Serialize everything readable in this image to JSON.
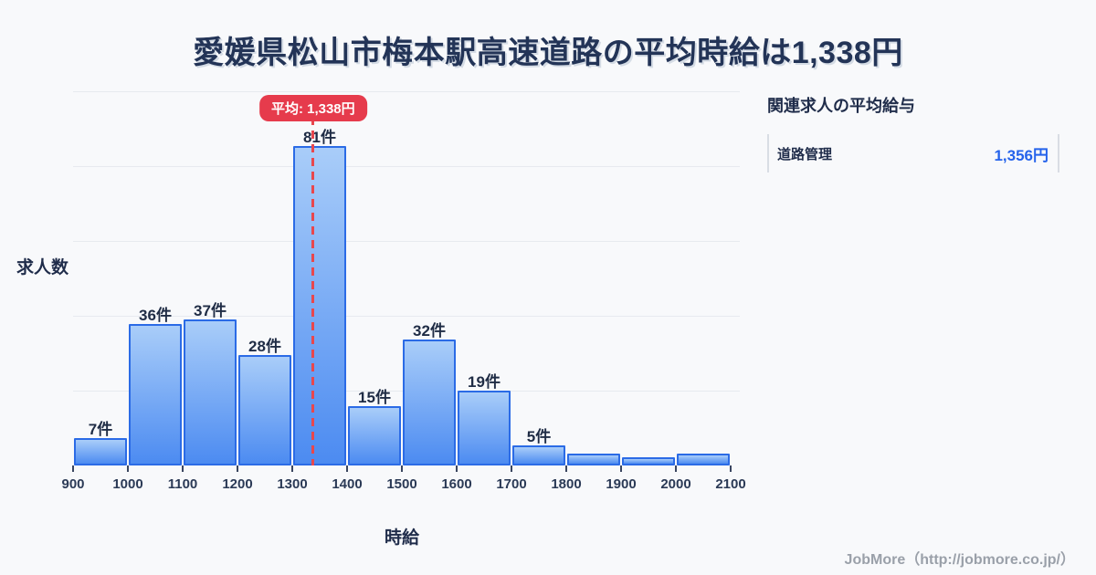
{
  "page": {
    "title": "愛媛県松山市梅本駅高速道路の平均時給は1,338円",
    "background": "#f8f9fb"
  },
  "chart_data": {
    "type": "bar",
    "title": "愛媛県松山市梅本駅高速道路の平均時給は1,338円",
    "xlabel": "時給",
    "ylabel": "求人数",
    "bin_edges": [
      900,
      1000,
      1100,
      1200,
      1300,
      1400,
      1500,
      1600,
      1700,
      1800,
      1900,
      2000,
      2100
    ],
    "x_tick_labels": [
      "900",
      "1000",
      "1100",
      "1200",
      "1300",
      "1400",
      "1500",
      "1600",
      "1700",
      "1800",
      "1900",
      "2000",
      "2100"
    ],
    "values": [
      7,
      36,
      37,
      28,
      81,
      15,
      32,
      19,
      5,
      3,
      2,
      3
    ],
    "bar_labels": [
      "7件",
      "36件",
      "37件",
      "28件",
      "81件",
      "15件",
      "32件",
      "19件",
      "5件",
      "",
      "",
      ""
    ],
    "ylim": [
      0,
      95
    ],
    "grid": true,
    "legend": "none",
    "average_line": {
      "value": 1338,
      "label": "平均: 1,338円",
      "line_color": "#e8474d",
      "badge_color": "#e63b4c"
    },
    "colors": {
      "bar_top": "#a9cdf9",
      "bar_bottom": "#4c8bf1",
      "bar_border": "#2b6be6",
      "gridline": "#e7eaef",
      "text": "#1f2c4a"
    }
  },
  "side_panel": {
    "title": "関連求人の平均給与",
    "rows": [
      {
        "label": "道路管理",
        "value": "1,356円"
      }
    ]
  },
  "footer": {
    "credit": "JobMore（http://jobmore.co.jp/）"
  }
}
